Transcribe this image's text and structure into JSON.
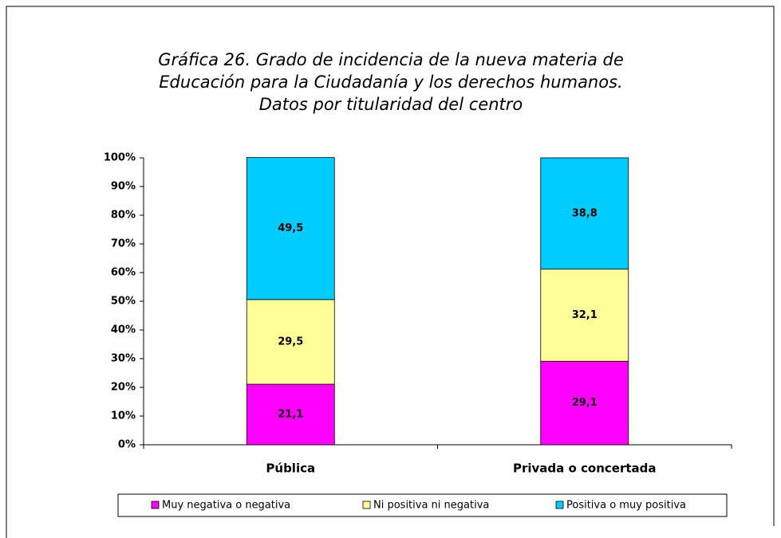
{
  "chart_data": {
    "type": "stacked_bar",
    "title": [
      "Gráfica 26. Grado de incidencia de la nueva materia de",
      "Educación para la Ciudadanía y los derechos humanos.",
      "Datos por titularidad del centro"
    ],
    "categories": [
      "Pública",
      "Privada o concertada"
    ],
    "series": [
      {
        "name": "Muy negativa o negativa",
        "color": "#ff00ff",
        "values": [
          21.1,
          29.1
        ],
        "value_labels": [
          "21,1",
          "29,1"
        ]
      },
      {
        "name": "Ni positiva ni negativa",
        "color": "#ffff99",
        "values": [
          29.5,
          32.1
        ],
        "value_labels": [
          "29,5",
          "32,1"
        ]
      },
      {
        "name": "Positiva o muy positiva",
        "color": "#00ccff",
        "values": [
          49.5,
          38.8
        ],
        "value_labels": [
          "49,5",
          "38,8"
        ]
      }
    ],
    "ylim": [
      0,
      100
    ],
    "yticks": [
      {
        "value": 0,
        "label": "0%"
      },
      {
        "value": 10,
        "label": "10%"
      },
      {
        "value": 20,
        "label": "20%"
      },
      {
        "value": 30,
        "label": "30%"
      },
      {
        "value": 40,
        "label": "40%"
      },
      {
        "value": 50,
        "label": "50%"
      },
      {
        "value": 60,
        "label": "60%"
      },
      {
        "value": 70,
        "label": "70%"
      },
      {
        "value": 80,
        "label": "80%"
      },
      {
        "value": 90,
        "label": "90%"
      },
      {
        "value": 100,
        "label": "100%"
      }
    ],
    "legend": "bottom"
  }
}
